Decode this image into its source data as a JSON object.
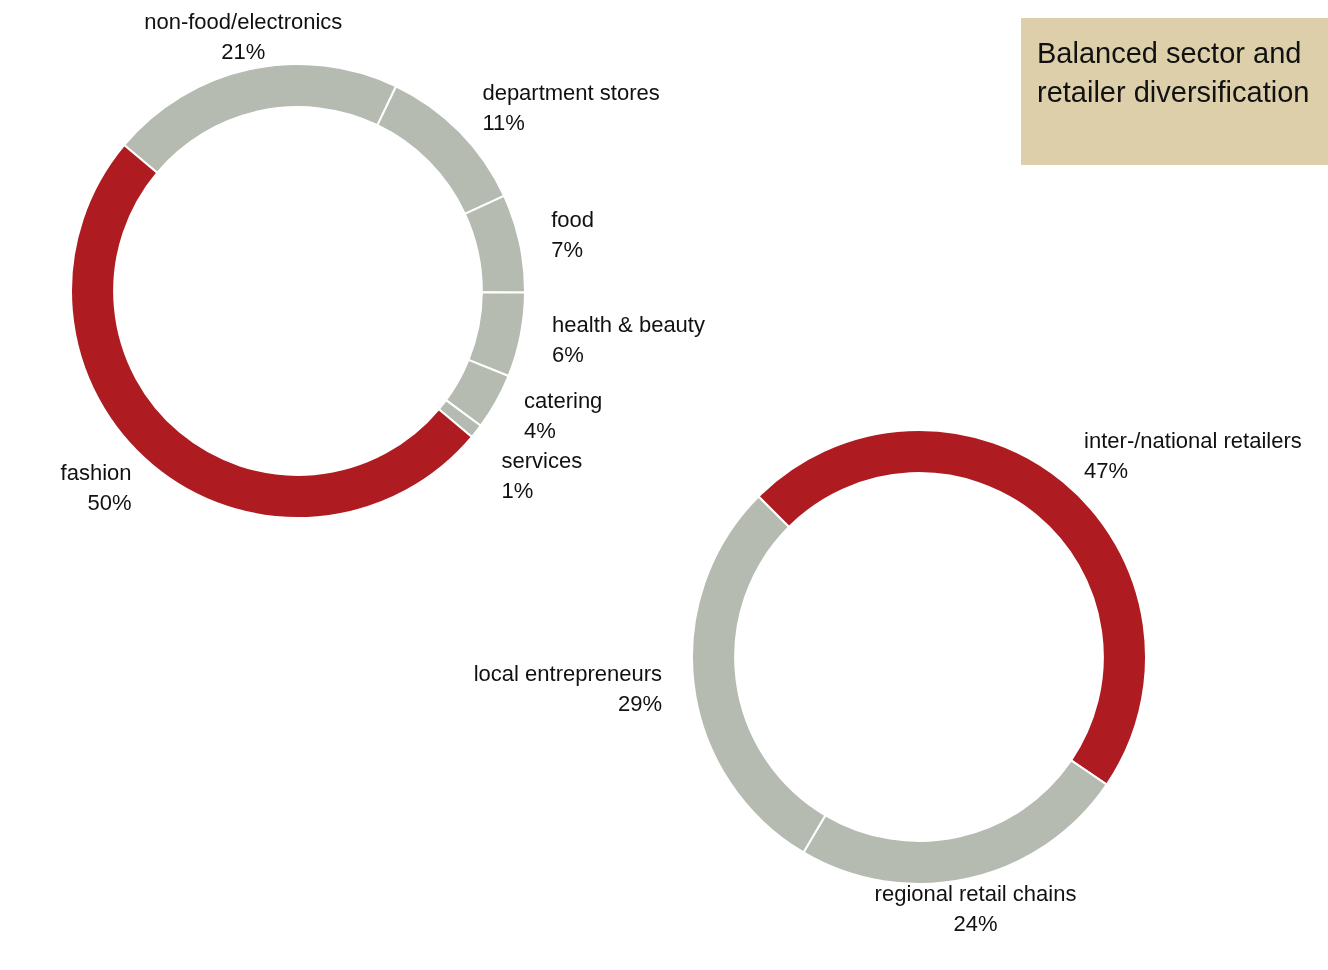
{
  "chart_data": [
    {
      "type": "donut",
      "categories": [
        "non-food/electronics",
        "department stores",
        "food",
        "health & beauty",
        "catering",
        "services",
        "fashion"
      ],
      "values": [
        21,
        11,
        7,
        6,
        4,
        1,
        50
      ],
      "value_labels": [
        "21%",
        "11%",
        "7%",
        "6%",
        "4%",
        "1%",
        "50%"
      ],
      "colors": [
        "#b5bbb1",
        "#b5bbb1",
        "#b5bbb1",
        "#b5bbb1",
        "#b5bbb1",
        "#b5bbb1",
        "#ae1c22"
      ],
      "annotations": [
        "Balanced sector and retailer diversification"
      ]
    },
    {
      "type": "donut",
      "categories": [
        "inter-/national retailers",
        "regional retail chains",
        "local entrepreneurs"
      ],
      "values": [
        47,
        24,
        29
      ],
      "value_labels": [
        "47%",
        "24%",
        "29%"
      ],
      "colors": [
        "#ae1c22",
        "#b5bbb1",
        "#b5bbb1"
      ]
    }
  ]
}
